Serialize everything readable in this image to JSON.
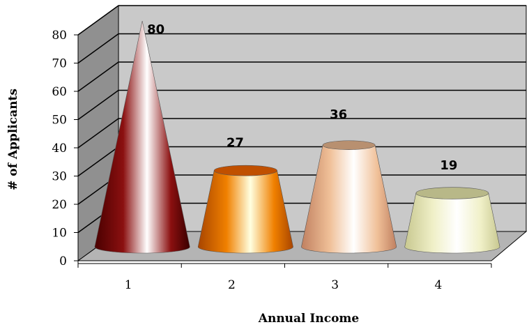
{
  "chart_data": {
    "type": "bar",
    "style": "3d-cone-and-truncated-cone",
    "categories": [
      "1",
      "2",
      "3",
      "4"
    ],
    "values": [
      80,
      27,
      36,
      19
    ],
    "data_labels": [
      "80",
      "27",
      "36",
      "19"
    ],
    "title": "",
    "xlabel": "Annual Income",
    "ylabel": "# of Applicants",
    "ylim": [
      0,
      80
    ],
    "yticks": [
      0,
      10,
      20,
      30,
      40,
      50,
      60,
      70,
      80
    ],
    "grid": true,
    "legend": "none",
    "series_colors": [
      "#7a0a0a",
      "#e0700a",
      "#e8b88a",
      "#e8e8b0"
    ]
  }
}
